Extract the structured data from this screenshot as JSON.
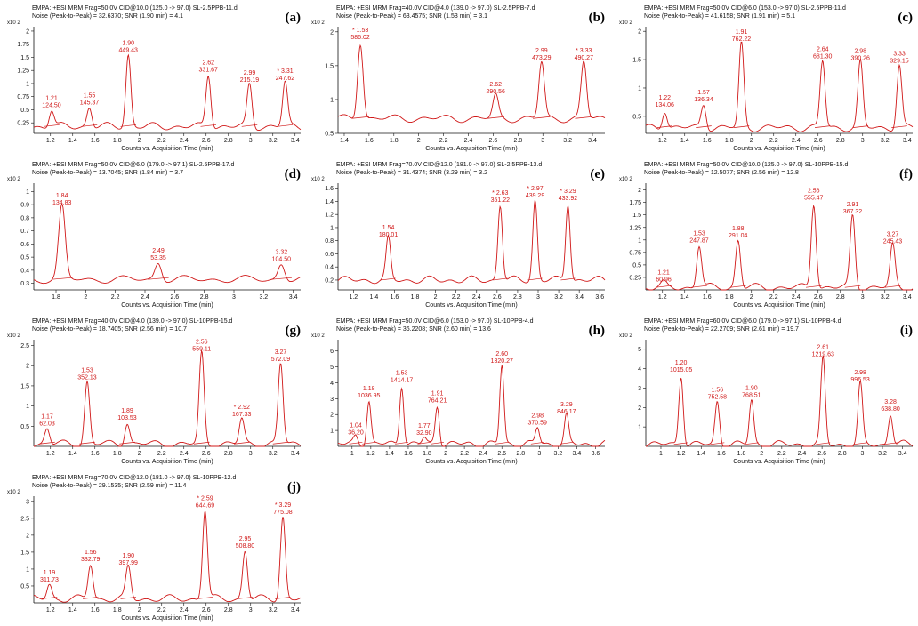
{
  "chart_data": [
    {
      "type": "line",
      "tag": "(a)",
      "title": "EMPA: +ESI MRM Frag=50.0V CID@10.0 (125.0 -> 97.0) SL-2.5PPB-11.d",
      "noise": "Noise (Peak-to-Peak) = 32.6370; SNR (1.90 min) = 4.1",
      "multiplier": "x10 2",
      "xlabel": "Counts vs. Acquisition Time (min)",
      "xlim": [
        1.05,
        3.45
      ],
      "ylim": [
        0.05,
        2.05
      ],
      "xticks": [
        "1.2",
        "1.4",
        "1.6",
        "1.8",
        "2",
        "2.2",
        "2.4",
        "2.6",
        "2.8",
        "3",
        "3.2",
        "3.4"
      ],
      "yticks": [
        "0.25",
        "0.5",
        "0.75",
        "1",
        "1.25",
        "1.5",
        "1.75",
        "2"
      ],
      "baseline": 0.18,
      "peaks": [
        {
          "rt": 1.21,
          "height": 0.5,
          "label": "1.21",
          "area": "124.50"
        },
        {
          "rt": 1.55,
          "height": 0.55,
          "label": "1.55",
          "area": "145.37"
        },
        {
          "rt": 1.9,
          "height": 1.55,
          "label": "1.90",
          "area": "449.43"
        },
        {
          "rt": 2.62,
          "height": 1.18,
          "label": "2.62",
          "area": "331.67"
        },
        {
          "rt": 2.99,
          "height": 0.98,
          "label": "2.99",
          "area": "215.19"
        },
        {
          "rt": 3.31,
          "height": 1.02,
          "label": "* 3.31",
          "area": "247.62"
        }
      ]
    },
    {
      "type": "line",
      "tag": "(b)",
      "title": "EMPA: +ESI MRM Frag=40.0V CID@4.0 (139.0 -> 97.0) SL-2.5PPB-7.d",
      "noise": "Noise (Peak-to-Peak) = 63.4575; SNR (1.53 min) = 3.1",
      "multiplier": "x10 2",
      "xlabel": "Counts vs. Acquisition Time (min)",
      "xlim": [
        1.35,
        3.5
      ],
      "ylim": [
        0.5,
        2.05
      ],
      "xticks": [
        "1.4",
        "1.6",
        "1.8",
        "2",
        "2.2",
        "2.4",
        "2.6",
        "2.8",
        "3",
        "3.2",
        "3.4"
      ],
      "yticks": [
        "0.5",
        "1",
        "1.5",
        "2"
      ],
      "baseline": 0.72,
      "peaks": [
        {
          "rt": 1.53,
          "height": 1.85,
          "label": "* 1.53",
          "area": "586.02"
        },
        {
          "rt": 2.62,
          "height": 1.05,
          "label": "2.62",
          "area": "290.56"
        },
        {
          "rt": 2.99,
          "height": 1.55,
          "label": "2.99",
          "area": "473.29"
        },
        {
          "rt": 3.33,
          "height": 1.55,
          "label": "* 3.33",
          "area": "490.27"
        }
      ]
    },
    {
      "type": "line",
      "tag": "(c)",
      "title": "EMPA: +ESI MRM Frag=50.0V CID@6.0 (153.0 -> 97.0) SL-2.5PPB-11.d",
      "noise": "Noise (Peak-to-Peak) = 41.6158; SNR (1.91 min) = 5.1",
      "multiplier": "x10 2",
      "xlabel": "Counts vs. Acquisition Time (min)",
      "xlim": [
        1.05,
        3.45
      ],
      "ylim": [
        0.2,
        2.05
      ],
      "xticks": [
        "1.2",
        "1.4",
        "1.6",
        "1.8",
        "2",
        "2.2",
        "2.4",
        "2.6",
        "2.8",
        "3",
        "3.2",
        "3.4"
      ],
      "yticks": [
        "0.5",
        "1",
        "1.5",
        "2"
      ],
      "baseline": 0.3,
      "peaks": [
        {
          "rt": 1.22,
          "height": 0.62,
          "label": "1.22",
          "area": "134.06"
        },
        {
          "rt": 1.57,
          "height": 0.72,
          "label": "1.57",
          "area": "136.34"
        },
        {
          "rt": 1.91,
          "height": 1.78,
          "label": "1.91",
          "area": "762.22"
        },
        {
          "rt": 2.64,
          "height": 1.48,
          "label": "2.64",
          "area": "681.30"
        },
        {
          "rt": 2.98,
          "height": 1.45,
          "label": "2.98",
          "area": "390.26"
        },
        {
          "rt": 3.33,
          "height": 1.4,
          "label": "3.33",
          "area": "329.15"
        }
      ]
    },
    {
      "type": "line",
      "tag": "(d)",
      "title": "EMPA: +ESI MRM Frag=50.0V CID@6.0 (179.0 -> 97.1) SL-2.5PPB-17.d",
      "noise": "Noise (Peak-to-Peak) = 13.7045; SNR (1.84 min) = 3.7",
      "multiplier": "x10 2",
      "xlabel": "Counts vs. Acquisition Time (min)",
      "xlim": [
        1.65,
        3.45
      ],
      "ylim": [
        0.25,
        1.05
      ],
      "xticks": [
        "1.8",
        "2",
        "2.2",
        "2.4",
        "2.6",
        "2.8",
        "3",
        "3.2",
        "3.4"
      ],
      "yticks": [
        "0.3",
        "0.4",
        "0.5",
        "0.6",
        "0.7",
        "0.8",
        "0.9",
        "1"
      ],
      "baseline": 0.33,
      "peaks": [
        {
          "rt": 1.84,
          "height": 0.88,
          "label": "1.84",
          "area": "134.83"
        },
        {
          "rt": 2.49,
          "height": 0.46,
          "label": "2.49",
          "area": "53.35"
        },
        {
          "rt": 3.32,
          "height": 0.45,
          "label": "3.32",
          "area": "104.50"
        }
      ]
    },
    {
      "type": "line",
      "tag": "(e)",
      "title": "EMPA: +ESI MRM Frag=70.0V CID@12.0 (181.0 -> 97.0) SL-2.5PPB-13.d",
      "noise": "Noise (Peak-to-Peak) = 31.4374; SNR (3.29 min) = 3.2",
      "multiplier": "x10 2",
      "xlabel": "Counts vs. Acquisition Time (min)",
      "xlim": [
        1.05,
        3.65
      ],
      "ylim": [
        0.05,
        1.65
      ],
      "xticks": [
        "1.2",
        "1.4",
        "1.6",
        "1.8",
        "2",
        "2.2",
        "2.4",
        "2.6",
        "2.8",
        "3",
        "3.2",
        "3.4",
        "3.6"
      ],
      "yticks": [
        "0.2",
        "0.4",
        "0.6",
        "0.8",
        "1",
        "1.2",
        "1.4",
        "1.6"
      ],
      "baseline": 0.2,
      "peaks": [
        {
          "rt": 1.54,
          "height": 0.82,
          "label": "1.54",
          "area": "180.01"
        },
        {
          "rt": 2.63,
          "height": 1.35,
          "label": "* 2.63",
          "area": "351.22"
        },
        {
          "rt": 2.97,
          "height": 1.42,
          "label": "* 2.97",
          "area": "439.29"
        },
        {
          "rt": 3.29,
          "height": 1.38,
          "label": "* 3.29",
          "area": "433.92"
        }
      ]
    },
    {
      "type": "line",
      "tag": "(f)",
      "title": "EMPA: +ESI MRM Frag=50.0V CID@10.0 (125.0 -> 97.0) SL-10PPB-15.d",
      "noise": "Noise (Peak-to-Peak) = 12.5077; SNR (2.56 min) = 12.8",
      "multiplier": "x10 2",
      "xlabel": "Counts vs. Acquisition Time (min)",
      "xlim": [
        1.05,
        3.45
      ],
      "ylim": [
        0.0,
        2.1
      ],
      "xticks": [
        "1.2",
        "1.4",
        "1.6",
        "1.8",
        "2",
        "2.2",
        "2.4",
        "2.6",
        "2.8",
        "3",
        "3.2",
        "3.4"
      ],
      "yticks": [
        "0.25",
        "0.5",
        "0.75",
        "1",
        "1.25",
        "1.5",
        "1.75",
        "2"
      ],
      "baseline": 0.05,
      "peaks": [
        {
          "rt": 1.21,
          "height": 0.12,
          "label": "1.21",
          "area": "60.96"
        },
        {
          "rt": 1.53,
          "height": 0.9,
          "label": "1.53",
          "area": "247.87"
        },
        {
          "rt": 1.88,
          "height": 1.0,
          "label": "1.88",
          "area": "291.04"
        },
        {
          "rt": 2.56,
          "height": 1.75,
          "label": "2.56",
          "area": "555.47"
        },
        {
          "rt": 2.91,
          "height": 1.48,
          "label": "2.91",
          "area": "367.32"
        },
        {
          "rt": 3.27,
          "height": 0.88,
          "label": "3.27",
          "area": "245.43"
        }
      ]
    },
    {
      "type": "line",
      "tag": "(g)",
      "title": "EMPA: +ESI MRM Frag=40.0V CID@4.0 (139.0 -> 97.0) SL-10PPB-15.d",
      "noise": "Noise (Peak-to-Peak) = 18.7405; SNR (2.56 min) = 10.7",
      "multiplier": "x10 2",
      "xlabel": "Counts vs. Acquisition Time (min)",
      "xlim": [
        1.05,
        3.45
      ],
      "ylim": [
        0.0,
        2.6
      ],
      "xticks": [
        "1.2",
        "1.4",
        "1.6",
        "1.8",
        "2",
        "2.2",
        "2.4",
        "2.6",
        "2.8",
        "3",
        "3.2",
        "3.4"
      ],
      "yticks": [
        "0.5",
        "1",
        "1.5",
        "2",
        "2.5"
      ],
      "baseline": 0.06,
      "peaks": [
        {
          "rt": 1.17,
          "height": 0.45,
          "label": "1.17",
          "area": "62.03"
        },
        {
          "rt": 1.53,
          "height": 1.6,
          "label": "1.53",
          "area": "352.13"
        },
        {
          "rt": 1.89,
          "height": 0.6,
          "label": "1.89",
          "area": "103.53"
        },
        {
          "rt": 2.56,
          "height": 2.3,
          "label": "2.56",
          "area": "559.11"
        },
        {
          "rt": 2.92,
          "height": 0.68,
          "label": "* 2.92",
          "area": "167.33"
        },
        {
          "rt": 3.27,
          "height": 2.05,
          "label": "3.27",
          "area": "572.09"
        }
      ]
    },
    {
      "type": "line",
      "tag": "(h)",
      "title": "EMPA: +ESI MRM Frag=50.0V CID@6.0 (153.0 -> 97.0) SL-10PPB-4.d",
      "noise": "Noise (Peak-to-Peak) = 36.2208; SNR (2.60 min) = 13.6",
      "multiplier": "x10 2",
      "xlabel": "Counts vs. Acquisition Time (min)",
      "xlim": [
        0.85,
        3.7
      ],
      "ylim": [
        0.0,
        6.6
      ],
      "xticks": [
        "1",
        "1.2",
        "1.4",
        "1.6",
        "1.8",
        "2",
        "2.2",
        "2.4",
        "2.6",
        "2.8",
        "3",
        "3.2",
        "3.4",
        "3.6"
      ],
      "yticks": [
        "1",
        "2",
        "3",
        "4",
        "5",
        "6"
      ],
      "baseline": 0.15,
      "peaks": [
        {
          "rt": 1.04,
          "height": 0.6,
          "label": "1.04",
          "area": "36.20"
        },
        {
          "rt": 1.18,
          "height": 2.9,
          "label": "1.18",
          "area": "1036.95"
        },
        {
          "rt": 1.53,
          "height": 3.9,
          "label": "1.53",
          "area": "1414.17"
        },
        {
          "rt": 1.77,
          "height": 0.55,
          "label": "1.77",
          "area": "32.90"
        },
        {
          "rt": 1.91,
          "height": 2.6,
          "label": "1.91",
          "area": "764.21"
        },
        {
          "rt": 2.6,
          "height": 5.1,
          "label": "2.60",
          "area": "1320.27"
        },
        {
          "rt": 2.98,
          "height": 1.2,
          "label": "2.98",
          "area": "370.59"
        },
        {
          "rt": 3.29,
          "height": 1.9,
          "label": "3.29",
          "area": "846.17"
        }
      ]
    },
    {
      "type": "line",
      "tag": "(i)",
      "title": "EMPA: +ESI MRM Frag=60.0V CID@6.0 (179.0 -> 97.1) SL-10PPB-4.d",
      "noise": "Noise (Peak-to-Peak) = 22.2709; SNR (2.61 min) = 19.7",
      "multiplier": "x10 2",
      "xlabel": "Counts vs. Acquisition Time (min)",
      "xlim": [
        0.85,
        3.5
      ],
      "ylim": [
        0.0,
        5.4
      ],
      "xticks": [
        "1",
        "1.2",
        "1.4",
        "1.6",
        "1.8",
        "2",
        "2.2",
        "2.4",
        "2.6",
        "2.8",
        "3",
        "3.2",
        "3.4"
      ],
      "yticks": [
        "1",
        "2",
        "3",
        "4",
        "5"
      ],
      "baseline": 0.1,
      "peaks": [
        {
          "rt": 1.2,
          "height": 3.7,
          "label": "1.20",
          "area": "1015.05"
        },
        {
          "rt": 1.56,
          "height": 2.3,
          "label": "1.56",
          "area": "752.58"
        },
        {
          "rt": 1.9,
          "height": 2.4,
          "label": "1.90",
          "area": "768.51"
        },
        {
          "rt": 2.61,
          "height": 4.5,
          "label": "2.61",
          "area": "1219.63"
        },
        {
          "rt": 2.98,
          "height": 3.2,
          "label": "2.98",
          "area": "996.53"
        },
        {
          "rt": 3.28,
          "height": 1.7,
          "label": "3.28",
          "area": "638.80"
        }
      ]
    },
    {
      "type": "line",
      "tag": "(j)",
      "title": "EMPA: +ESI MRM Frag=70.0V CID@12.0 (181.0 -> 97.0) SL-10PPB-12.d",
      "noise": "Noise (Peak-to-Peak) = 29.1535; SNR (2.59 min) = 11.4",
      "multiplier": "x10 2",
      "xlabel": "Counts vs. Acquisition Time (min)",
      "xlim": [
        1.05,
        3.45
      ],
      "ylim": [
        0.0,
        3.1
      ],
      "xticks": [
        "1.2",
        "1.4",
        "1.6",
        "1.8",
        "2",
        "2.2",
        "2.4",
        "2.6",
        "2.8",
        "3",
        "3.2",
        "3.4"
      ],
      "yticks": [
        "0.5",
        "1",
        "1.5",
        "2",
        "2.5",
        "3"
      ],
      "baseline": 0.12,
      "peaks": [
        {
          "rt": 1.19,
          "height": 0.55,
          "label": "1.19",
          "area": "311.73"
        },
        {
          "rt": 1.56,
          "height": 1.15,
          "label": "1.56",
          "area": "332.79"
        },
        {
          "rt": 1.9,
          "height": 1.05,
          "label": "1.90",
          "area": "397.99"
        },
        {
          "rt": 2.59,
          "height": 2.75,
          "label": "* 2.59",
          "area": "644.69"
        },
        {
          "rt": 2.95,
          "height": 1.55,
          "label": "2.95",
          "area": "508.80"
        },
        {
          "rt": 3.29,
          "height": 2.55,
          "label": "* 3.29",
          "area": "775.08"
        }
      ]
    }
  ],
  "colors": {
    "trace": "#d01818",
    "axis": "#111111"
  }
}
